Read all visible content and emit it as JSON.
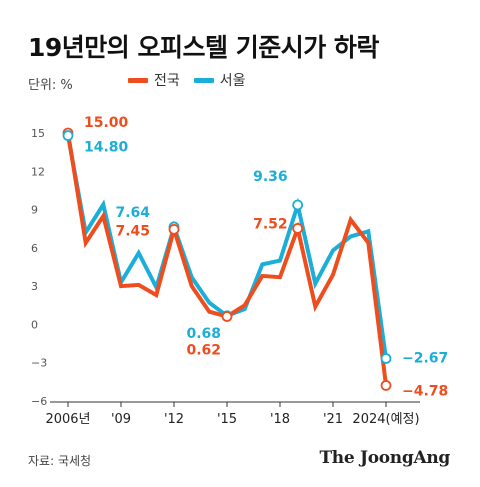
{
  "title": "19년만의 오피스텔 기준시가 하락",
  "unit_label": "단위: %",
  "source": "자료: 국세청",
  "brand": "The JoongAng",
  "colors": {
    "national": "#ee4d1e",
    "seoul": "#1baed8",
    "axis": "#333333"
  },
  "chart_data": {
    "type": "line",
    "title": "19년만의 오피스텔 기준시가 하락",
    "xlabel": "",
    "ylabel": "단위: %",
    "x": [
      2006,
      2007,
      2008,
      2009,
      2010,
      2011,
      2012,
      2013,
      2014,
      2015,
      2016,
      2017,
      2018,
      2019,
      2020,
      2021,
      2022,
      2023,
      2024
    ],
    "ylim": [
      -6,
      15
    ],
    "yticks": [
      15,
      12,
      9,
      6,
      3,
      0,
      -3,
      -6
    ],
    "xticks": [
      {
        "x": 2006,
        "label": "2006년"
      },
      {
        "x": 2009,
        "label": "'09"
      },
      {
        "x": 2012,
        "label": "'12"
      },
      {
        "x": 2015,
        "label": "'15"
      },
      {
        "x": 2018,
        "label": "'18"
      },
      {
        "x": 2021,
        "label": "'21"
      },
      {
        "x": 2024,
        "label": "2024(예정)"
      }
    ],
    "series": [
      {
        "name": "전국",
        "color": "#ee4d1e",
        "values": [
          15.0,
          6.4,
          8.5,
          3.0,
          3.1,
          2.3,
          7.45,
          3.0,
          1.0,
          0.62,
          1.5,
          3.8,
          3.7,
          7.52,
          1.4,
          3.9,
          8.2,
          6.4,
          -4.78
        ]
      },
      {
        "name": "서울",
        "color": "#1baed8",
        "values": [
          14.8,
          7.2,
          9.4,
          3.3,
          5.6,
          2.9,
          7.64,
          3.7,
          1.7,
          0.68,
          1.2,
          4.7,
          5.0,
          9.36,
          3.2,
          5.8,
          6.9,
          7.3,
          -2.67
        ]
      }
    ],
    "annotations": [
      {
        "series": "전국",
        "x": 2006,
        "value": 15.0,
        "label": "15.00"
      },
      {
        "series": "서울",
        "x": 2006,
        "value": 14.8,
        "label": "14.80"
      },
      {
        "series": "서울",
        "x": 2012,
        "value": 7.64,
        "label": "7.64"
      },
      {
        "series": "전국",
        "x": 2012,
        "value": 7.45,
        "label": "7.45"
      },
      {
        "series": "서울",
        "x": 2015,
        "value": 0.68,
        "label": "0.68"
      },
      {
        "series": "전국",
        "x": 2015,
        "value": 0.62,
        "label": "0.62"
      },
      {
        "series": "서울",
        "x": 2019,
        "value": 9.36,
        "label": "9.36"
      },
      {
        "series": "전국",
        "x": 2019,
        "value": 7.52,
        "label": "7.52"
      },
      {
        "series": "서울",
        "x": 2024,
        "value": -2.67,
        "label": "−2.67"
      },
      {
        "series": "전국",
        "x": 2024,
        "value": -4.78,
        "label": "−4.78"
      }
    ]
  }
}
